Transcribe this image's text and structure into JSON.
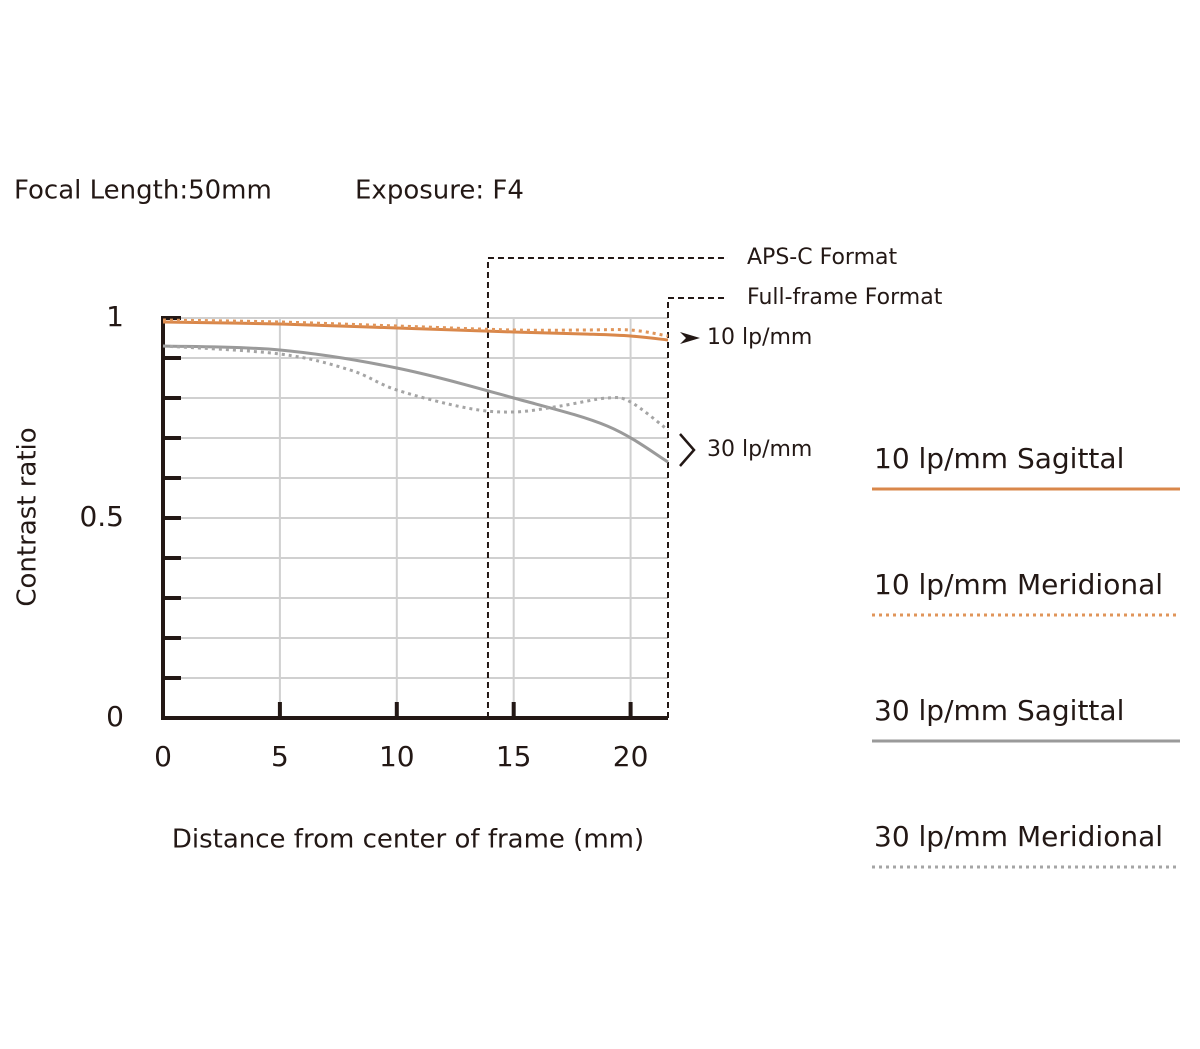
{
  "chart_data": {
    "type": "line",
    "header": [
      "Focal Length:50mm",
      "Exposure: F4"
    ],
    "xlabel": "Distance from center of frame (mm)",
    "ylabel": "Contrast ratio",
    "xlim": [
      0,
      21.6
    ],
    "ylim": [
      0,
      1
    ],
    "xticks": [
      0,
      5,
      10,
      15,
      20
    ],
    "yticks": [
      0,
      0.5,
      1
    ],
    "y_minor_ticks": [
      0.1,
      0.2,
      0.3,
      0.4,
      0.6,
      0.7,
      0.8,
      0.9
    ],
    "grid": true,
    "format_lines": [
      {
        "label": "APS-C Format",
        "x": 13.9
      },
      {
        "label": "Full-frame Format",
        "x": 21.6
      }
    ],
    "group_labels": [
      "10 lp/mm",
      "30 lp/mm"
    ],
    "series": [
      {
        "name": "10 lp/mm Sagittal",
        "color": "#d9874a",
        "dash": "solid",
        "x": [
          0,
          5,
          10,
          15,
          18,
          20,
          21.6
        ],
        "values": [
          0.99,
          0.985,
          0.975,
          0.965,
          0.96,
          0.955,
          0.945
        ]
      },
      {
        "name": "10 lp/mm Meridional",
        "color": "#e0955a",
        "dash": "dotted",
        "x": [
          0,
          5,
          10,
          15,
          18,
          20,
          21.6
        ],
        "values": [
          0.995,
          0.99,
          0.98,
          0.97,
          0.97,
          0.97,
          0.955
        ]
      },
      {
        "name": "30 lp/mm Sagittal",
        "color": "#9a9a9a",
        "dash": "solid",
        "x": [
          0,
          5,
          10,
          15,
          19,
          21.6
        ],
        "values": [
          0.93,
          0.92,
          0.875,
          0.8,
          0.73,
          0.64
        ]
      },
      {
        "name": "30 lp/mm Meridional",
        "color": "#a5a5a5",
        "dash": "dotted",
        "x": [
          0,
          5,
          8,
          10,
          13,
          15,
          17,
          19,
          20,
          21.6
        ],
        "values": [
          0.93,
          0.91,
          0.87,
          0.82,
          0.775,
          0.765,
          0.78,
          0.8,
          0.79,
          0.72
        ]
      }
    ]
  }
}
